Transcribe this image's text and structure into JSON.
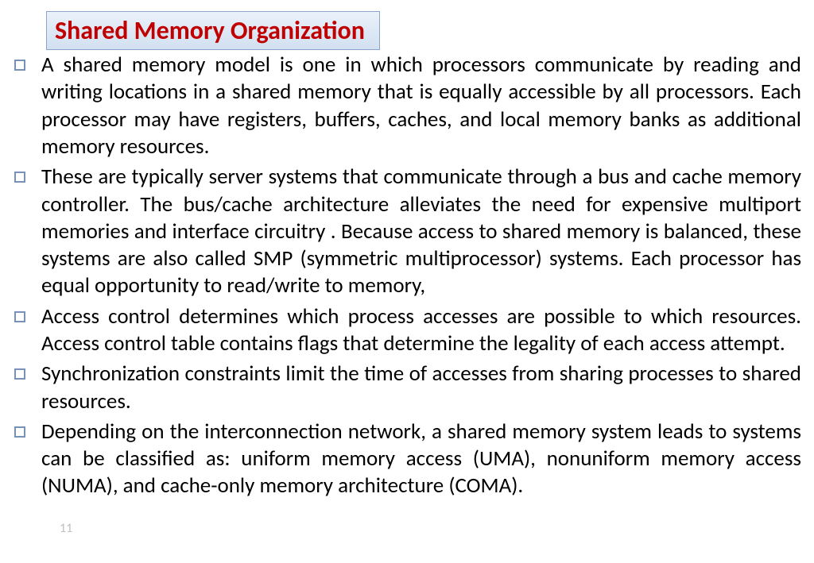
{
  "title": {
    "text": "Shared Memory Organization",
    "color": "#c00000",
    "box_border_color": "#8ba5c8",
    "box_bg_top": "#eaf1fa",
    "box_bg_bottom": "#d2e0f0",
    "fontsize_pt": 32
  },
  "bullets": {
    "marker_color": "#7891b7",
    "text_color": "#000000",
    "fontsize_pt": 27,
    "items": [
      "A shared memory model is one in which processors communicate by reading and writing locations in a shared memory that is equally accessible by all processors. Each processor may have registers, buffers, caches, and local memory banks as additional memory resources.",
      " These are typically server systems that communicate through a bus and cache memory controller. The bus/cache architecture alleviates the need for expensive multiport memories and interface circuitry . Because access to shared memory is balanced, these systems are also called SMP (symmetric multiprocessor) systems. Each processor has equal opportunity to read/write to memory,",
      "Access control determines which process accesses are possible to which resources. Access control table contains flags that determine the legality of each access attempt.",
      "Synchronization constraints limit the time of accesses from sharing processes to shared resources.",
      "Depending on the interconnection network, a shared memory system leads to systems can be classified as: uniform memory access (UMA), nonuniform memory access (NUMA), and cache-only memory architecture (COMA)."
    ]
  },
  "page_number": "11",
  "page_number_color": "#bfbfbf",
  "background_color": "#ffffff"
}
